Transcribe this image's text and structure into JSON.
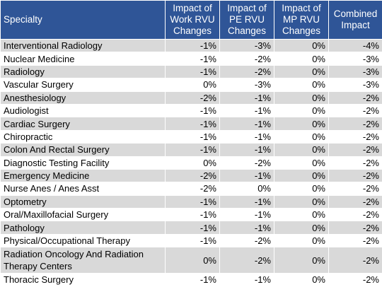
{
  "table": {
    "headers": [
      "Specialty",
      "Impact of Work RVU Changes",
      "Impact of PE RVU Changes",
      "Impact of MP RVU Changes",
      "Combined Impact"
    ],
    "rows": [
      [
        "Interventional Radiology",
        "-1%",
        "-3%",
        "0%",
        "-4%"
      ],
      [
        "Nuclear Medicine",
        "-1%",
        "-2%",
        "0%",
        "-3%"
      ],
      [
        "Radiology",
        "-1%",
        "-2%",
        "0%",
        "-3%"
      ],
      [
        "Vascular Surgery",
        "0%",
        "-3%",
        "0%",
        "-3%"
      ],
      [
        "Anesthesiology",
        "-2%",
        "-1%",
        "0%",
        "-2%"
      ],
      [
        "Audiologist",
        "-1%",
        "-1%",
        "0%",
        "-2%"
      ],
      [
        "Cardiac Surgery",
        "-1%",
        "-1%",
        "0%",
        "-2%"
      ],
      [
        "Chiropractic",
        "-1%",
        "-1%",
        "0%",
        "-2%"
      ],
      [
        "Colon And Rectal Surgery",
        "-1%",
        "-1%",
        "0%",
        "-2%"
      ],
      [
        "Diagnostic Testing Facility",
        "0%",
        "-2%",
        "0%",
        "-2%"
      ],
      [
        "Emergency Medicine",
        "-2%",
        "-1%",
        "0%",
        "-2%"
      ],
      [
        "Nurse Anes / Anes Asst",
        "-2%",
        "0%",
        "0%",
        "-2%"
      ],
      [
        "Optometry",
        "-1%",
        "-1%",
        "0%",
        "-2%"
      ],
      [
        "Oral/Maxillofacial Surgery",
        "-1%",
        "-1%",
        "0%",
        "-2%"
      ],
      [
        "Pathology",
        "-1%",
        "-1%",
        "0%",
        "-2%"
      ],
      [
        "Physical/Occupational Therapy",
        "-1%",
        "-2%",
        "0%",
        "-2%"
      ],
      [
        "Radiation Oncology And Radiation Therapy Centers",
        "0%",
        "-2%",
        "0%",
        "-2%"
      ],
      [
        "Thoracic Surgery",
        "-1%",
        "-1%",
        "0%",
        "-2%"
      ]
    ]
  },
  "colors": {
    "header_bg": "#2f5597",
    "header_text": "#ffffff",
    "row_shade": "#d9d9d9",
    "row_plain": "#ffffff"
  }
}
